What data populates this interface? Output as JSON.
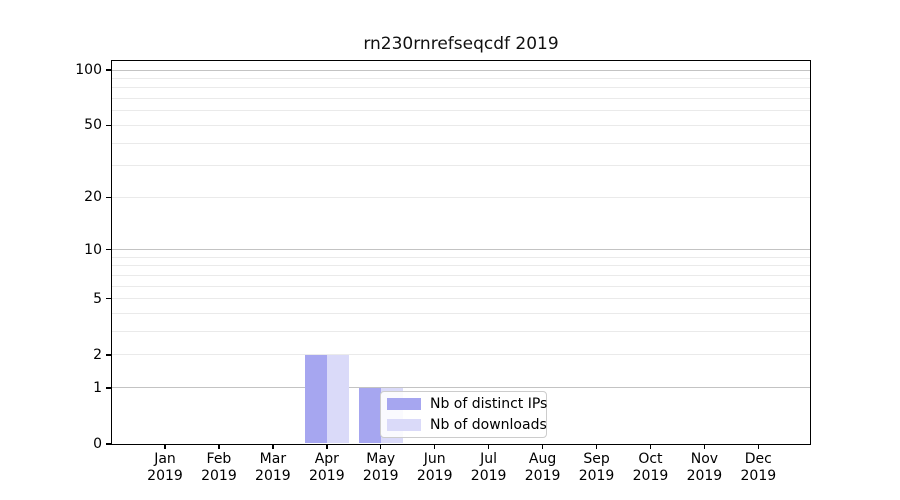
{
  "chart_data": {
    "type": "bar",
    "title": "rn230rnrefseqcdf 2019",
    "categories": [
      "Jan",
      "Feb",
      "Mar",
      "Apr",
      "May",
      "Jun",
      "Jul",
      "Aug",
      "Sep",
      "Oct",
      "Nov",
      "Dec"
    ],
    "category_sublabel": "2019",
    "series": [
      {
        "name": "Nb of distinct IPs",
        "color": "#a6a6f0",
        "values": [
          0,
          0,
          0,
          2,
          1,
          0,
          0,
          0,
          0,
          0,
          0,
          0
        ]
      },
      {
        "name": "Nb of downloads",
        "color": "#dadaf9",
        "values": [
          0,
          0,
          0,
          2,
          1,
          0,
          0,
          0,
          0,
          0,
          0,
          0
        ]
      }
    ],
    "xlabel": "",
    "ylabel": "",
    "y_axis": {
      "scale": "log1p",
      "ylim": [
        0,
        100
      ],
      "tick_labels": [
        0,
        1,
        2,
        5,
        10,
        20,
        50,
        100
      ],
      "major_gridlines": [
        1,
        10,
        100
      ],
      "minor_gridlines": [
        2,
        3,
        4,
        5,
        6,
        7,
        8,
        9,
        20,
        30,
        40,
        50,
        60,
        70,
        80,
        90
      ]
    },
    "legend": {
      "visible": true,
      "entries": [
        "Nb of distinct IPs",
        "Nb of downloads"
      ]
    },
    "colors": {
      "minor_grid": "#eaeaea",
      "major_grid": "#c3c3c3",
      "spine": "#000000",
      "text": "#000000",
      "legend_border": "#cccccc"
    }
  }
}
